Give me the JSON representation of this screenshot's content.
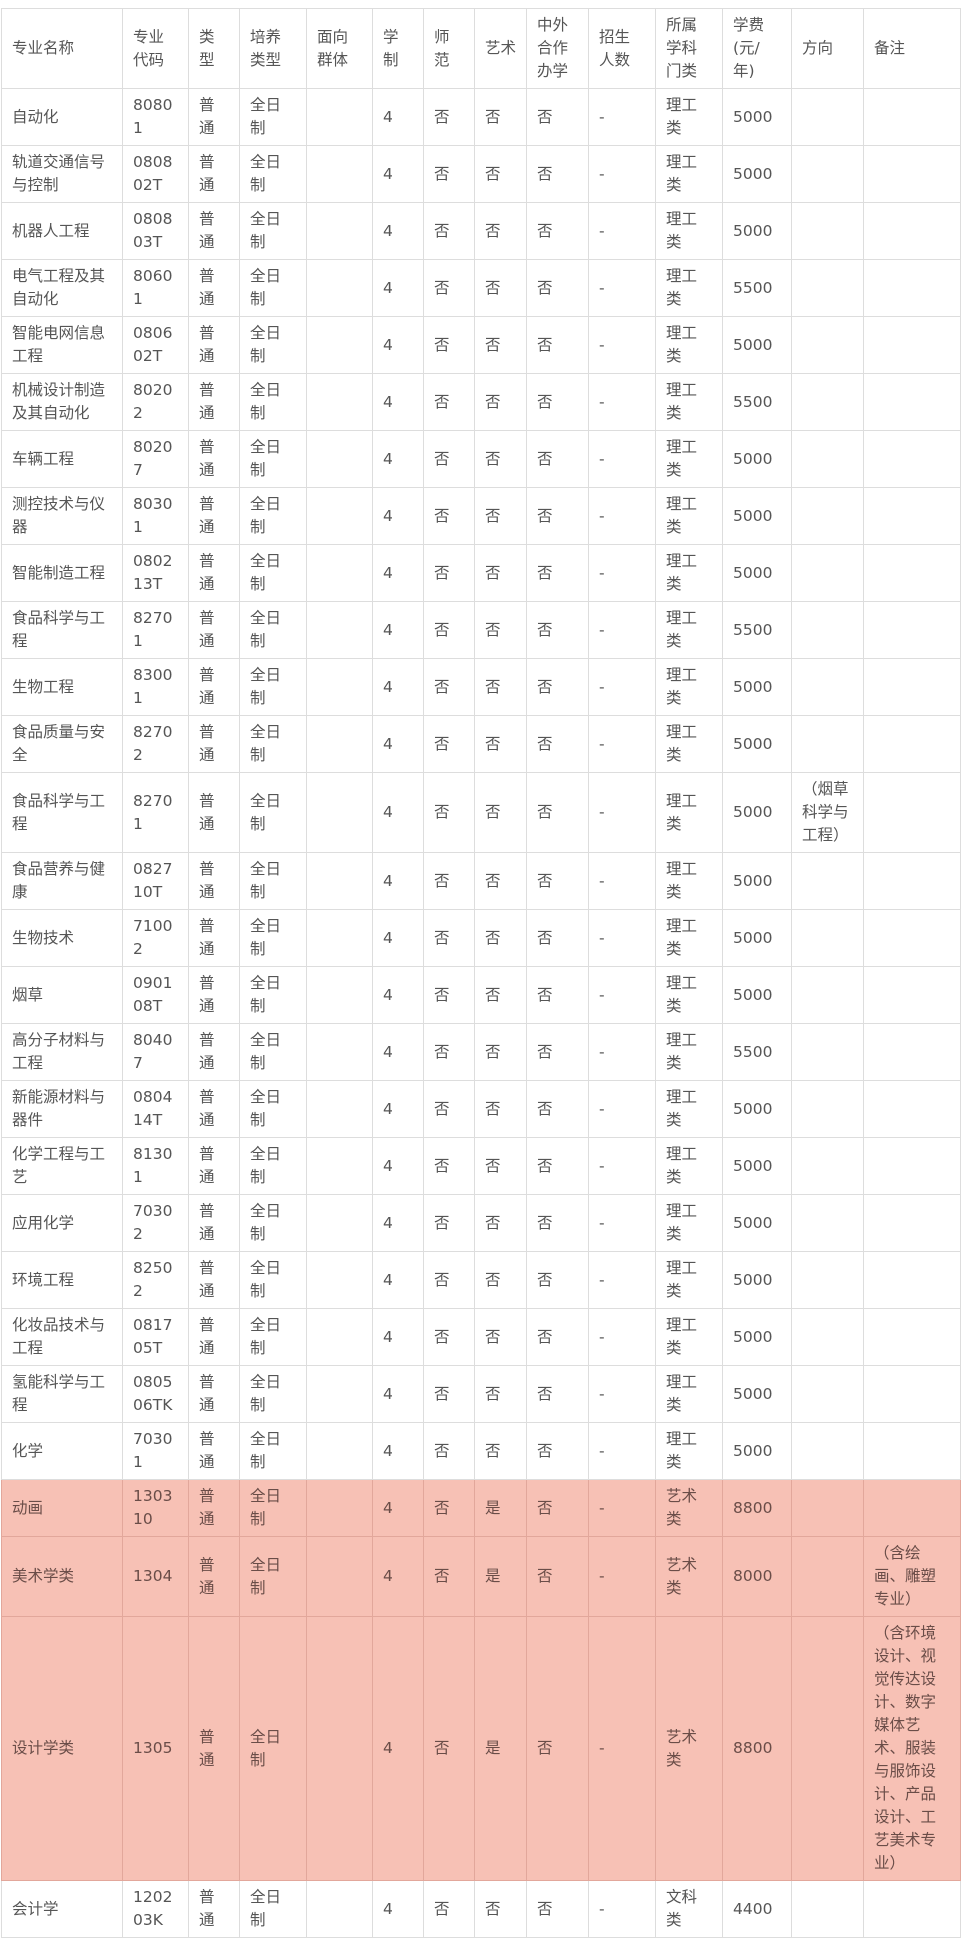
{
  "table": {
    "headers": [
      "专业名称",
      "专业代码",
      "类型",
      "培养类型",
      "面向群体",
      "学制",
      "师范",
      "艺术",
      "中外合作办学",
      "招生人数",
      "所属学科门类",
      "学费(元/年)",
      "方向",
      "备注"
    ],
    "rows": [
      {
        "cells": [
          "自动化",
          "80801",
          "普通",
          "全日制",
          "",
          "4",
          "否",
          "否",
          "否",
          "-",
          "理工类",
          "5000",
          "",
          ""
        ]
      },
      {
        "cells": [
          "轨道交通信号与控制",
          "080802T",
          "普通",
          "全日制",
          "",
          "4",
          "否",
          "否",
          "否",
          "-",
          "理工类",
          "5000",
          "",
          ""
        ]
      },
      {
        "cells": [
          "机器人工程",
          "080803T",
          "普通",
          "全日制",
          "",
          "4",
          "否",
          "否",
          "否",
          "-",
          "理工类",
          "5000",
          "",
          ""
        ]
      },
      {
        "cells": [
          "电气工程及其自动化",
          "80601",
          "普通",
          "全日制",
          "",
          "4",
          "否",
          "否",
          "否",
          "-",
          "理工类",
          "5500",
          "",
          ""
        ]
      },
      {
        "cells": [
          "智能电网信息工程",
          "080602T",
          "普通",
          "全日制",
          "",
          "4",
          "否",
          "否",
          "否",
          "-",
          "理工类",
          "5000",
          "",
          ""
        ]
      },
      {
        "cells": [
          "机械设计制造及其自动化",
          "80202",
          "普通",
          "全日制",
          "",
          "4",
          "否",
          "否",
          "否",
          "-",
          "理工类",
          "5500",
          "",
          ""
        ]
      },
      {
        "cells": [
          "车辆工程",
          "80207",
          "普通",
          "全日制",
          "",
          "4",
          "否",
          "否",
          "否",
          "-",
          "理工类",
          "5000",
          "",
          ""
        ]
      },
      {
        "cells": [
          "测控技术与仪器",
          "80301",
          "普通",
          "全日制",
          "",
          "4",
          "否",
          "否",
          "否",
          "-",
          "理工类",
          "5000",
          "",
          ""
        ]
      },
      {
        "cells": [
          "智能制造工程",
          "080213T",
          "普通",
          "全日制",
          "",
          "4",
          "否",
          "否",
          "否",
          "-",
          "理工类",
          "5000",
          "",
          ""
        ]
      },
      {
        "cells": [
          "食品科学与工程",
          "82701",
          "普通",
          "全日制",
          "",
          "4",
          "否",
          "否",
          "否",
          "-",
          "理工类",
          "5500",
          "",
          ""
        ]
      },
      {
        "cells": [
          "生物工程",
          "83001",
          "普通",
          "全日制",
          "",
          "4",
          "否",
          "否",
          "否",
          "-",
          "理工类",
          "5000",
          "",
          ""
        ]
      },
      {
        "cells": [
          "食品质量与安全",
          "82702",
          "普通",
          "全日制",
          "",
          "4",
          "否",
          "否",
          "否",
          "-",
          "理工类",
          "5000",
          "",
          ""
        ]
      },
      {
        "cells": [
          "食品科学与工程",
          "82701",
          "普通",
          "全日制",
          "",
          "4",
          "否",
          "否",
          "否",
          "-",
          "理工类",
          "5000",
          "（烟草科学与工程）",
          ""
        ]
      },
      {
        "cells": [
          "食品营养与健康",
          "082710T",
          "普通",
          "全日制",
          "",
          "4",
          "否",
          "否",
          "否",
          "-",
          "理工类",
          "5000",
          "",
          ""
        ]
      },
      {
        "cells": [
          "生物技术",
          "71002",
          "普通",
          "全日制",
          "",
          "4",
          "否",
          "否",
          "否",
          "-",
          "理工类",
          "5000",
          "",
          ""
        ]
      },
      {
        "cells": [
          "烟草",
          "090108T",
          "普通",
          "全日制",
          "",
          "4",
          "否",
          "否",
          "否",
          "-",
          "理工类",
          "5000",
          "",
          ""
        ]
      },
      {
        "cells": [
          "高分子材料与工程",
          "80407",
          "普通",
          "全日制",
          "",
          "4",
          "否",
          "否",
          "否",
          "-",
          "理工类",
          "5500",
          "",
          ""
        ]
      },
      {
        "cells": [
          "新能源材料与器件",
          "080414T",
          "普通",
          "全日制",
          "",
          "4",
          "否",
          "否",
          "否",
          "-",
          "理工类",
          "5000",
          "",
          ""
        ]
      },
      {
        "cells": [
          "化学工程与工艺",
          "81301",
          "普通",
          "全日制",
          "",
          "4",
          "否",
          "否",
          "否",
          "-",
          "理工类",
          "5000",
          "",
          ""
        ]
      },
      {
        "cells": [
          "应用化学",
          "70302",
          "普通",
          "全日制",
          "",
          "4",
          "否",
          "否",
          "否",
          "-",
          "理工类",
          "5000",
          "",
          ""
        ]
      },
      {
        "cells": [
          "环境工程",
          "82502",
          "普通",
          "全日制",
          "",
          "4",
          "否",
          "否",
          "否",
          "-",
          "理工类",
          "5000",
          "",
          ""
        ]
      },
      {
        "cells": [
          "化妆品技术与工程",
          "081705T",
          "普通",
          "全日制",
          "",
          "4",
          "否",
          "否",
          "否",
          "-",
          "理工类",
          "5000",
          "",
          ""
        ]
      },
      {
        "cells": [
          "氢能科学与工程",
          "080506TK",
          "普通",
          "全日制",
          "",
          "4",
          "否",
          "否",
          "否",
          "-",
          "理工类",
          "5000",
          "",
          ""
        ]
      },
      {
        "cells": [
          "化学",
          "70301",
          "普通",
          "全日制",
          "",
          "4",
          "否",
          "否",
          "否",
          "-",
          "理工类",
          "5000",
          "",
          ""
        ]
      },
      {
        "highlight": true,
        "cells": [
          "动画",
          "130310",
          "普通",
          "全日制",
          "",
          "4",
          "否",
          "是",
          "否",
          "-",
          "艺术类",
          "8800",
          "",
          ""
        ]
      },
      {
        "highlight": true,
        "cells": [
          "美术学类",
          "1304",
          "普通",
          "全日制",
          "",
          "4",
          "否",
          "是",
          "否",
          "-",
          "艺术类",
          "8000",
          "",
          "（含绘画、雕塑专业）"
        ]
      },
      {
        "highlight": true,
        "cells": [
          "设计学类",
          "1305",
          "普通",
          "全日制",
          "",
          "4",
          "否",
          "是",
          "否",
          "-",
          "艺术类",
          "8800",
          "",
          "（含环境设计、视觉传达设计、数字媒体艺术、服装与服饰设计、产品设计、工艺美术专业）"
        ]
      },
      {
        "cells": [
          "会计学",
          "120203K",
          "普通",
          "全日制",
          "",
          "4",
          "否",
          "否",
          "否",
          "-",
          "文科类",
          "4400",
          "",
          ""
        ]
      }
    ]
  },
  "colors": {
    "highlight_bg": "#f7c1b5",
    "border": "#dddddd"
  }
}
